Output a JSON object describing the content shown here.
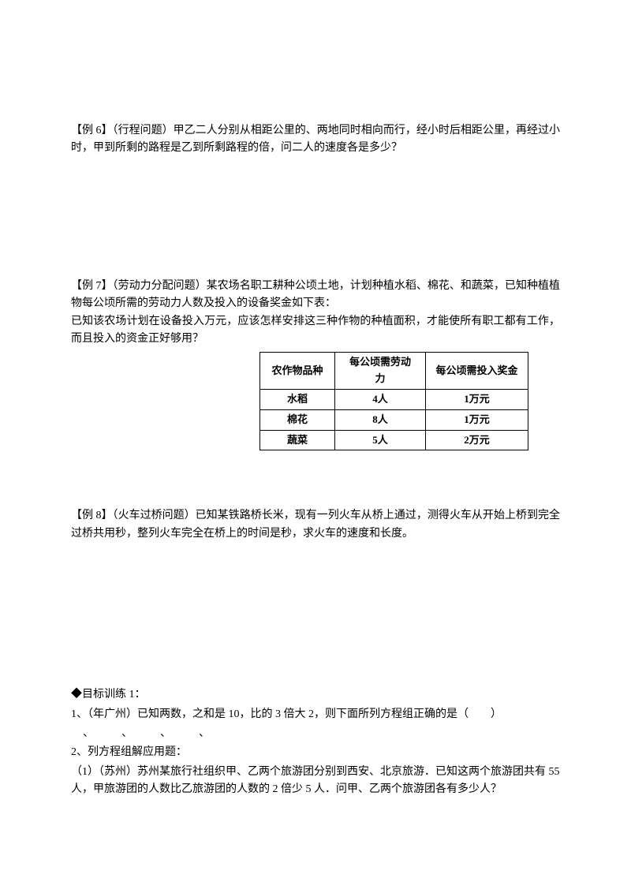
{
  "example6": {
    "title": "【例 6】（行程问题）甲乙二人分别从相距公里的、两地同时相向而行，经小时后相距公里，再经过小时，甲到所剩的路程是乙到所剩路程的倍，问二人的速度各是多少？"
  },
  "example7": {
    "title": "【例 7】（劳动力分配问题）某农场名职工耕种公顷土地，计划种植水稻、棉花、和蔬菜，已知种植植物每公顷所需的劳动力人数及投入的设备奖金如下表：",
    "line2": "已知该农场计划在设备投入万元，应该怎样安排这三种作物的种植面积，才能使所有职工都有工作，而且投入的资金正好够用？",
    "table": {
      "headers": [
        "农作物品种",
        "每公顷需劳动力",
        "每公顷需投入奖金"
      ],
      "rows": [
        [
          "水稻",
          "4人",
          "1万元"
        ],
        [
          "棉花",
          "8人",
          "1万元"
        ],
        [
          "蔬菜",
          "5人",
          "2万元"
        ]
      ]
    }
  },
  "example8": {
    "title": "【例 8】（火车过桥问题）已知某铁路桥长米，现有一列火车从桥上通过，测得火车从开始上桥到完全过桥共用秒，整列火车完全在桥上的时间是秒，求火车的速度和长度。"
  },
  "training": {
    "header": "◆目标训练 1：",
    "item1": "1、（年广州）已知两数，之和是 10，比的 3 倍大 2，则下面所列方程组正确的是（　　）",
    "item1_blank": "、　　　、　　　、　　　、",
    "item2": "2、列方程组解应用题：",
    "item2_sub": "（1）（苏州）苏州某旅行社组织甲、乙两个旅游团分别到西安、北京旅游．已知这两个旅游团共有 55 人，甲旅游团的人数比乙旅游团的人数的 2 倍少 5 人．问甲、乙两个旅游团各有多少人？"
  }
}
